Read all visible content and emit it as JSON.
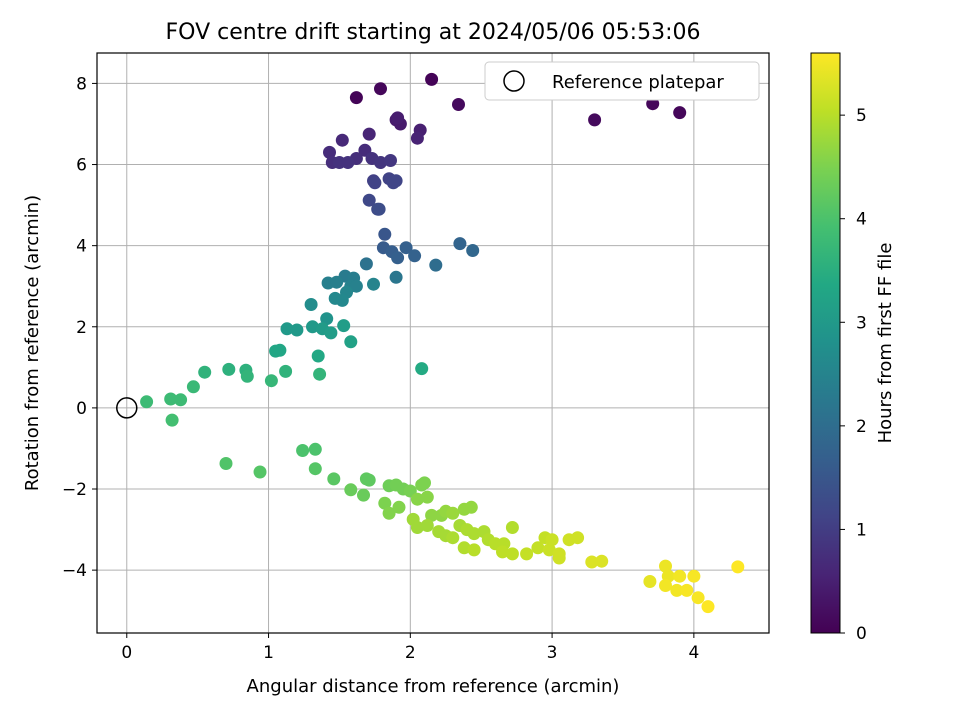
{
  "chart_data": {
    "type": "scatter",
    "title": "FOV centre drift starting at 2024/05/06 05:53:06",
    "xlabel": "Angular distance from reference (arcmin)",
    "ylabel": "Rotation from reference (arcmin)",
    "xlim": [
      -0.21,
      4.53
    ],
    "ylim": [
      -5.55,
      8.75
    ],
    "xticks": [
      0,
      1,
      2,
      3,
      4
    ],
    "yticks": [
      -4,
      -2,
      0,
      2,
      4,
      6,
      8
    ],
    "xtick_labels": [
      "0",
      "1",
      "2",
      "3",
      "4"
    ],
    "ytick_labels": [
      "−4",
      "−2",
      "0",
      "2",
      "4",
      "6",
      "8"
    ],
    "grid": true,
    "legend": {
      "placement": "top-right",
      "entries": [
        "Reference platepar"
      ]
    },
    "colorbar": {
      "label": "Hours from first FF file",
      "range": [
        0,
        5.6
      ],
      "ticks": [
        0,
        1,
        2,
        3,
        4,
        5
      ],
      "tick_labels": [
        "0",
        "1",
        "2",
        "3",
        "4",
        "5"
      ],
      "colormap": "viridis"
    },
    "reference_point": {
      "x": 0,
      "y": 0
    },
    "points": [
      {
        "x": 1.62,
        "y": 7.65,
        "c": 0.05
      },
      {
        "x": 1.79,
        "y": 7.87,
        "c": 0.1
      },
      {
        "x": 2.15,
        "y": 8.1,
        "c": 0.05
      },
      {
        "x": 2.34,
        "y": 7.48,
        "c": 0.15
      },
      {
        "x": 3.3,
        "y": 7.1,
        "c": 0.15
      },
      {
        "x": 3.71,
        "y": 7.5,
        "c": 0.1
      },
      {
        "x": 3.9,
        "y": 7.28,
        "c": 0.1
      },
      {
        "x": 1.9,
        "y": 7.1,
        "c": 0.4
      },
      {
        "x": 1.93,
        "y": 7.0,
        "c": 0.4
      },
      {
        "x": 1.91,
        "y": 7.15,
        "c": 0.45
      },
      {
        "x": 2.07,
        "y": 6.85,
        "c": 0.5
      },
      {
        "x": 2.05,
        "y": 6.65,
        "c": 0.55
      },
      {
        "x": 1.71,
        "y": 6.75,
        "c": 0.6
      },
      {
        "x": 1.52,
        "y": 6.6,
        "c": 0.65
      },
      {
        "x": 1.43,
        "y": 6.3,
        "c": 0.7
      },
      {
        "x": 1.68,
        "y": 6.35,
        "c": 0.7
      },
      {
        "x": 1.62,
        "y": 6.15,
        "c": 0.75
      },
      {
        "x": 1.45,
        "y": 6.05,
        "c": 0.75
      },
      {
        "x": 1.5,
        "y": 6.05,
        "c": 0.8
      },
      {
        "x": 1.56,
        "y": 6.05,
        "c": 0.8
      },
      {
        "x": 1.73,
        "y": 6.15,
        "c": 0.8
      },
      {
        "x": 1.79,
        "y": 6.05,
        "c": 0.85
      },
      {
        "x": 1.86,
        "y": 6.1,
        "c": 0.9
      },
      {
        "x": 1.74,
        "y": 5.6,
        "c": 1.05
      },
      {
        "x": 1.75,
        "y": 5.55,
        "c": 1.1
      },
      {
        "x": 1.85,
        "y": 5.65,
        "c": 1.1
      },
      {
        "x": 1.88,
        "y": 5.55,
        "c": 1.15
      },
      {
        "x": 1.9,
        "y": 5.6,
        "c": 1.15
      },
      {
        "x": 1.71,
        "y": 5.12,
        "c": 1.2
      },
      {
        "x": 1.77,
        "y": 4.9,
        "c": 1.25
      },
      {
        "x": 1.78,
        "y": 4.9,
        "c": 1.3
      },
      {
        "x": 1.82,
        "y": 4.28,
        "c": 1.5
      },
      {
        "x": 1.81,
        "y": 3.95,
        "c": 1.6
      },
      {
        "x": 1.87,
        "y": 3.85,
        "c": 1.65
      },
      {
        "x": 1.91,
        "y": 3.7,
        "c": 1.7
      },
      {
        "x": 1.97,
        "y": 3.95,
        "c": 1.7
      },
      {
        "x": 2.03,
        "y": 3.75,
        "c": 1.75
      },
      {
        "x": 2.35,
        "y": 4.05,
        "c": 1.8
      },
      {
        "x": 2.44,
        "y": 3.88,
        "c": 1.85
      },
      {
        "x": 2.18,
        "y": 3.52,
        "c": 2.0
      },
      {
        "x": 1.69,
        "y": 3.55,
        "c": 2.1
      },
      {
        "x": 1.9,
        "y": 3.22,
        "c": 2.2
      },
      {
        "x": 1.54,
        "y": 3.25,
        "c": 2.3
      },
      {
        "x": 1.6,
        "y": 3.2,
        "c": 2.35
      },
      {
        "x": 1.42,
        "y": 3.08,
        "c": 2.4
      },
      {
        "x": 1.48,
        "y": 3.1,
        "c": 2.4
      },
      {
        "x": 1.58,
        "y": 3.0,
        "c": 2.45
      },
      {
        "x": 1.62,
        "y": 3.0,
        "c": 2.45
      },
      {
        "x": 1.74,
        "y": 3.05,
        "c": 2.5
      },
      {
        "x": 1.55,
        "y": 2.85,
        "c": 2.55
      },
      {
        "x": 1.47,
        "y": 2.7,
        "c": 2.6
      },
      {
        "x": 1.52,
        "y": 2.65,
        "c": 2.6
      },
      {
        "x": 1.3,
        "y": 2.55,
        "c": 2.7
      },
      {
        "x": 1.41,
        "y": 2.2,
        "c": 2.85
      },
      {
        "x": 1.13,
        "y": 1.95,
        "c": 3.0
      },
      {
        "x": 1.2,
        "y": 1.92,
        "c": 3.0
      },
      {
        "x": 1.31,
        "y": 2.0,
        "c": 3.0
      },
      {
        "x": 1.38,
        "y": 1.95,
        "c": 3.05
      },
      {
        "x": 1.44,
        "y": 1.85,
        "c": 3.1
      },
      {
        "x": 1.53,
        "y": 2.03,
        "c": 3.1
      },
      {
        "x": 1.58,
        "y": 1.63,
        "c": 3.2
      },
      {
        "x": 1.05,
        "y": 1.4,
        "c": 3.3
      },
      {
        "x": 1.08,
        "y": 1.42,
        "c": 3.3
      },
      {
        "x": 1.35,
        "y": 1.28,
        "c": 3.35
      },
      {
        "x": 2.08,
        "y": 0.97,
        "c": 3.4
      },
      {
        "x": 0.72,
        "y": 0.95,
        "c": 3.55
      },
      {
        "x": 0.84,
        "y": 0.93,
        "c": 3.55
      },
      {
        "x": 0.55,
        "y": 0.88,
        "c": 3.6
      },
      {
        "x": 1.12,
        "y": 0.9,
        "c": 3.6
      },
      {
        "x": 0.85,
        "y": 0.78,
        "c": 3.65
      },
      {
        "x": 1.36,
        "y": 0.83,
        "c": 3.65
      },
      {
        "x": 1.02,
        "y": 0.67,
        "c": 3.7
      },
      {
        "x": 0.47,
        "y": 0.52,
        "c": 3.75
      },
      {
        "x": 0.14,
        "y": 0.15,
        "c": 3.8
      },
      {
        "x": 0.31,
        "y": 0.22,
        "c": 3.8
      },
      {
        "x": 0.38,
        "y": 0.2,
        "c": 3.8
      },
      {
        "x": 0.32,
        "y": -0.3,
        "c": 3.9
      },
      {
        "x": 1.24,
        "y": -1.05,
        "c": 4.0
      },
      {
        "x": 1.33,
        "y": -1.02,
        "c": 4.0
      },
      {
        "x": 0.7,
        "y": -1.37,
        "c": 4.05
      },
      {
        "x": 1.33,
        "y": -1.5,
        "c": 4.1
      },
      {
        "x": 0.94,
        "y": -1.58,
        "c": 4.1
      },
      {
        "x": 1.46,
        "y": -1.75,
        "c": 4.15
      },
      {
        "x": 1.69,
        "y": -1.75,
        "c": 4.2
      },
      {
        "x": 1.71,
        "y": -1.78,
        "c": 4.2
      },
      {
        "x": 1.58,
        "y": -2.02,
        "c": 4.3
      },
      {
        "x": 1.67,
        "y": -2.15,
        "c": 4.3
      },
      {
        "x": 1.85,
        "y": -1.92,
        "c": 4.35
      },
      {
        "x": 1.9,
        "y": -1.9,
        "c": 4.4
      },
      {
        "x": 1.95,
        "y": -2.0,
        "c": 4.4
      },
      {
        "x": 2.0,
        "y": -2.05,
        "c": 4.45
      },
      {
        "x": 2.08,
        "y": -1.9,
        "c": 4.5
      },
      {
        "x": 2.1,
        "y": -1.85,
        "c": 4.5
      },
      {
        "x": 1.82,
        "y": -2.35,
        "c": 4.5
      },
      {
        "x": 1.85,
        "y": -2.6,
        "c": 4.55
      },
      {
        "x": 1.92,
        "y": -2.45,
        "c": 4.55
      },
      {
        "x": 2.05,
        "y": -2.25,
        "c": 4.6
      },
      {
        "x": 2.12,
        "y": -2.2,
        "c": 4.6
      },
      {
        "x": 2.15,
        "y": -2.65,
        "c": 4.65
      },
      {
        "x": 2.22,
        "y": -2.65,
        "c": 4.65
      },
      {
        "x": 2.25,
        "y": -2.55,
        "c": 4.7
      },
      {
        "x": 2.38,
        "y": -2.5,
        "c": 4.7
      },
      {
        "x": 2.43,
        "y": -2.45,
        "c": 4.7
      },
      {
        "x": 2.3,
        "y": -2.6,
        "c": 4.75
      },
      {
        "x": 2.02,
        "y": -2.75,
        "c": 4.8
      },
      {
        "x": 2.05,
        "y": -2.95,
        "c": 4.8
      },
      {
        "x": 2.12,
        "y": -2.9,
        "c": 4.8
      },
      {
        "x": 2.2,
        "y": -3.05,
        "c": 4.85
      },
      {
        "x": 2.25,
        "y": -3.15,
        "c": 4.85
      },
      {
        "x": 2.3,
        "y": -3.2,
        "c": 4.9
      },
      {
        "x": 2.35,
        "y": -2.9,
        "c": 4.85
      },
      {
        "x": 2.4,
        "y": -3.0,
        "c": 4.9
      },
      {
        "x": 2.45,
        "y": -3.1,
        "c": 4.9
      },
      {
        "x": 2.52,
        "y": -3.05,
        "c": 4.9
      },
      {
        "x": 2.55,
        "y": -3.25,
        "c": 4.95
      },
      {
        "x": 2.38,
        "y": -3.45,
        "c": 4.95
      },
      {
        "x": 2.45,
        "y": -3.5,
        "c": 5.0
      },
      {
        "x": 2.6,
        "y": -3.35,
        "c": 5.0
      },
      {
        "x": 2.66,
        "y": -3.35,
        "c": 5.0
      },
      {
        "x": 2.65,
        "y": -3.55,
        "c": 5.05
      },
      {
        "x": 2.72,
        "y": -2.95,
        "c": 4.95
      },
      {
        "x": 2.72,
        "y": -3.6,
        "c": 5.05
      },
      {
        "x": 2.82,
        "y": -3.6,
        "c": 5.1
      },
      {
        "x": 2.9,
        "y": -3.45,
        "c": 5.1
      },
      {
        "x": 2.95,
        "y": -3.2,
        "c": 5.1
      },
      {
        "x": 3.0,
        "y": -3.25,
        "c": 5.15
      },
      {
        "x": 2.98,
        "y": -3.5,
        "c": 5.15
      },
      {
        "x": 3.05,
        "y": -3.6,
        "c": 5.2
      },
      {
        "x": 3.05,
        "y": -3.7,
        "c": 5.2
      },
      {
        "x": 3.12,
        "y": -3.25,
        "c": 5.2
      },
      {
        "x": 3.18,
        "y": -3.2,
        "c": 5.2
      },
      {
        "x": 3.28,
        "y": -3.8,
        "c": 5.3
      },
      {
        "x": 3.35,
        "y": -3.78,
        "c": 5.3
      },
      {
        "x": 3.69,
        "y": -4.28,
        "c": 5.4
      },
      {
        "x": 3.8,
        "y": -3.9,
        "c": 5.45
      },
      {
        "x": 3.82,
        "y": -4.15,
        "c": 5.45
      },
      {
        "x": 3.8,
        "y": -4.38,
        "c": 5.5
      },
      {
        "x": 3.88,
        "y": -4.5,
        "c": 5.5
      },
      {
        "x": 3.9,
        "y": -4.15,
        "c": 5.5
      },
      {
        "x": 3.95,
        "y": -4.5,
        "c": 5.55
      },
      {
        "x": 4.0,
        "y": -4.15,
        "c": 5.55
      },
      {
        "x": 4.03,
        "y": -4.68,
        "c": 5.55
      },
      {
        "x": 4.1,
        "y": -4.9,
        "c": 5.6
      },
      {
        "x": 4.31,
        "y": -3.92,
        "c": 5.6
      }
    ]
  }
}
